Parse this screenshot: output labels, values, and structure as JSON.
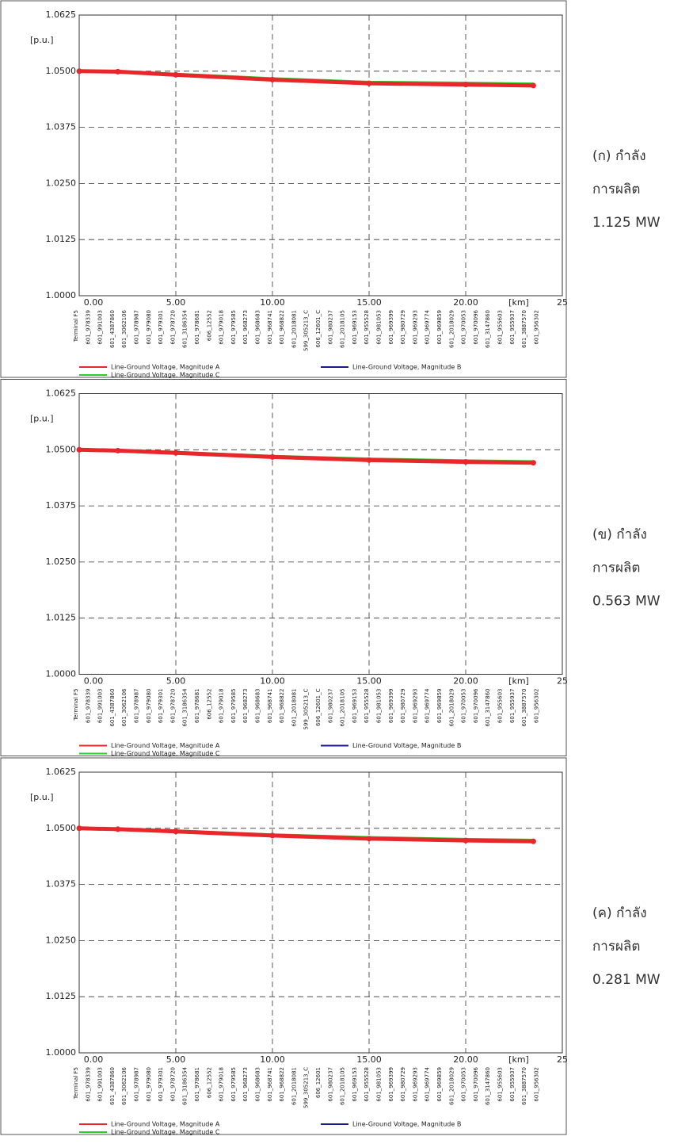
{
  "chart_data": [
    {
      "type": "line",
      "y_label": "[p.u.]",
      "x_label": "[km]",
      "caption": [
        "(ก) กำลัง",
        "การผลิต",
        "1.125 MW"
      ],
      "xlim": [
        0,
        25
      ],
      "xticks": [
        {
          "value": 0,
          "label": "0.00"
        },
        {
          "value": 5,
          "label": "5.00"
        },
        {
          "value": 10,
          "label": "10.00"
        },
        {
          "value": 15,
          "label": "15.00"
        },
        {
          "value": 20,
          "label": "20.00"
        },
        25
      ],
      "ylim": [
        1.0,
        1.0625
      ],
      "yticks": [
        {
          "value": 1.0,
          "label": "1.0000"
        },
        {
          "value": 1.0125,
          "label": "1.0125"
        },
        {
          "value": 1.025,
          "label": "1.0250"
        },
        {
          "value": 1.0375,
          "label": "1.0375"
        },
        {
          "value": 1.05,
          "label": "1.0500"
        },
        {
          "value": 1.0625,
          "label": "1.0625"
        }
      ],
      "grid": true,
      "bus_labels": [
        "Terminal F5",
        "601_978339",
        "601_991003",
        "601_4387860",
        "601_3062106",
        "601_978987",
        "601_979080",
        "601_979301",
        "601_978720",
        "601_3186354",
        "601_978681",
        "606_12552",
        "601_979018",
        "601_979585",
        "601_968273",
        "601_968683",
        "601_968741",
        "601_968822",
        "601_2018081",
        "599_305213_C",
        "606_12601_C",
        "601_980237",
        "601_2018105",
        "601_969153",
        "601_955528",
        "601_981053",
        "601_969399",
        "601_980729",
        "601_969293",
        "601_969774",
        "601_969859",
        "601_2018029",
        "601_970053",
        "601_970096",
        "601_3147860",
        "601_955603",
        "601_955937",
        "601_3887570",
        "601_956302"
      ],
      "x": [
        0,
        2,
        5,
        10,
        15,
        20,
        23.5
      ],
      "series": [
        {
          "name": "Line-Ground Voltage, Magnitude A",
          "color": "#e8262c",
          "values": [
            1.05,
            1.0499,
            1.0492,
            1.0481,
            1.0473,
            1.047,
            1.0468
          ]
        },
        {
          "name": "Line-Ground Voltage, Magnitude B",
          "color": "#1a1a8c",
          "values": [
            1.05,
            1.0499,
            1.0493,
            1.0482,
            1.0474,
            1.0471,
            1.0469
          ]
        },
        {
          "name": "Line-Ground Voltage, Magnitude C",
          "color": "#2ecc2e",
          "values": [
            1.05,
            1.05,
            1.0494,
            1.0484,
            1.0476,
            1.0474,
            1.0472
          ]
        }
      ]
    },
    {
      "type": "line",
      "y_label": "[p.u.]",
      "x_label": "[km]",
      "caption": [
        "(ข) กำลัง",
        "การผลิต",
        "0.563 MW"
      ],
      "xlim": [
        0,
        25
      ],
      "xticks": [
        {
          "value": 0,
          "label": "0.00"
        },
        {
          "value": 5,
          "label": "5.00"
        },
        {
          "value": 10,
          "label": "10.00"
        },
        {
          "value": 15,
          "label": "15.00"
        },
        {
          "value": 20,
          "label": "20.00"
        },
        25
      ],
      "ylim": [
        1.0,
        1.0625
      ],
      "yticks": [
        {
          "value": 1.0,
          "label": "1.0000"
        },
        {
          "value": 1.0125,
          "label": "1.0125"
        },
        {
          "value": 1.025,
          "label": "1.0250"
        },
        {
          "value": 1.0375,
          "label": "1.0375"
        },
        {
          "value": 1.05,
          "label": "1.0500"
        },
        {
          "value": 1.0625,
          "label": "1.0625"
        }
      ],
      "grid": true,
      "bus_labels": [
        "Terminal F5",
        "601_978339",
        "601_991003",
        "601_4387860",
        "601_3062106",
        "601_978987",
        "601_979080",
        "601_979301",
        "601_978720",
        "601_3186354",
        "601_978681",
        "606_12552",
        "601_979018",
        "601_979585",
        "601_968273",
        "601_968683",
        "601_968741",
        "601_968822",
        "601_2018081",
        "599_305213_C",
        "606_12601_C",
        "601_980237",
        "601_2018105",
        "601_969153",
        "601_955528",
        "601_981053",
        "601_969399",
        "601_980729",
        "601_969293",
        "601_969774",
        "601_969859",
        "601_2018029",
        "601_970053",
        "601_970096",
        "601_3147860",
        "601_955603",
        "601_955937",
        "601_3887570",
        "601_956302"
      ],
      "x": [
        0,
        2,
        5,
        10,
        15,
        20,
        23.5
      ],
      "series": [
        {
          "name": "Line-Ground Voltage, Magnitude A",
          "color": "#e8262c",
          "values": [
            1.05,
            1.0498,
            1.0493,
            1.0484,
            1.0477,
            1.0473,
            1.0471
          ]
        },
        {
          "name": "Line-Ground Voltage, Magnitude B",
          "color": "#1a1a8c",
          "values": [
            1.05,
            1.0498,
            1.0494,
            1.0485,
            1.0478,
            1.0474,
            1.0472
          ]
        },
        {
          "name": "Line-Ground Voltage, Magnitude C",
          "color": "#2ecc2e",
          "values": [
            1.05,
            1.0499,
            1.0495,
            1.0486,
            1.048,
            1.0476,
            1.0474
          ]
        }
      ]
    },
    {
      "type": "line",
      "y_label": "[p.u.]",
      "x_label": "[km]",
      "caption": [
        "(ค) กำลัง",
        "การผลิต",
        "0.281 MW"
      ],
      "xlim": [
        0,
        25
      ],
      "xticks": [
        {
          "value": 0,
          "label": "0.00"
        },
        {
          "value": 5,
          "label": "5.00"
        },
        {
          "value": 10,
          "label": "10.00"
        },
        {
          "value": 15,
          "label": "15.00"
        },
        {
          "value": 20,
          "label": "20.00"
        },
        25
      ],
      "ylim": [
        1.0,
        1.0625
      ],
      "yticks": [
        {
          "value": 1.0,
          "label": "1.0000"
        },
        {
          "value": 1.0125,
          "label": "1.0125"
        },
        {
          "value": 1.025,
          "label": "1.0250"
        },
        {
          "value": 1.0375,
          "label": "1.0375"
        },
        {
          "value": 1.05,
          "label": "1.0500"
        },
        {
          "value": 1.0625,
          "label": "1.0625"
        }
      ],
      "grid": true,
      "bus_labels": [
        "Terminal F5",
        "601_978339",
        "601_991003",
        "601_4387860",
        "601_3062106",
        "601_978987",
        "601_979080",
        "601_979301",
        "601_978720",
        "601_3186354",
        "601_978681",
        "606_12552",
        "601_979018",
        "601_979585",
        "601_968273",
        "601_968683",
        "601_968741",
        "601_968822",
        "601_2018081",
        "599_305213_C",
        "606_12601",
        "601_980237",
        "601_2018105",
        "601_969153",
        "601_955528",
        "601_981053",
        "601_969399",
        "601_980729",
        "601_969293",
        "601_969774",
        "601_969859",
        "601_2018029",
        "601_970053",
        "601_970096",
        "601_3147860",
        "601_955603",
        "601_955937",
        "601_3887570",
        "601_956302"
      ],
      "x": [
        0,
        2,
        5,
        10,
        15,
        20,
        23.5
      ],
      "series": [
        {
          "name": "Line-Ground Voltage, Magnitude A",
          "color": "#e8262c",
          "values": [
            1.05,
            1.0498,
            1.0493,
            1.0484,
            1.0477,
            1.0473,
            1.0471
          ]
        },
        {
          "name": "Line-Ground Voltage, Magnitude B",
          "color": "#1a1a8c",
          "values": [
            1.05,
            1.0498,
            1.0494,
            1.0485,
            1.0478,
            1.0474,
            1.0472
          ]
        },
        {
          "name": "Line-Ground Voltage, Magnitude C",
          "color": "#2ecc2e",
          "values": [
            1.05,
            1.0499,
            1.0495,
            1.0486,
            1.048,
            1.0476,
            1.0474
          ]
        }
      ]
    }
  ]
}
